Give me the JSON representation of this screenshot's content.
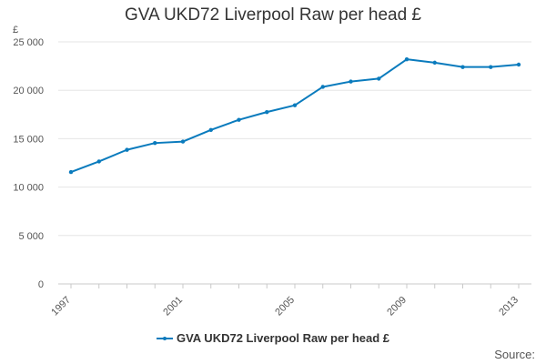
{
  "chart_data": {
    "type": "line",
    "title": "GVA UKD72 Liverpool Raw per head £",
    "ylabel": "£",
    "xlabel": "",
    "x": [
      1997,
      1998,
      1999,
      2000,
      2001,
      2002,
      2003,
      2004,
      2005,
      2006,
      2007,
      2008,
      2009,
      2010,
      2011,
      2012,
      2013
    ],
    "series": [
      {
        "name": "GVA UKD72 Liverpool Raw per head £",
        "color": "#0a7bbd",
        "values": [
          11550,
          12650,
          13850,
          14550,
          14700,
          15900,
          16950,
          17750,
          18450,
          20350,
          20900,
          21200,
          23200,
          22850,
          22400,
          22400,
          22650
        ]
      }
    ],
    "ylim": [
      0,
      25000
    ],
    "yticks": [
      0,
      5000,
      10000,
      15000,
      20000,
      25000
    ],
    "ytick_labels": [
      "0",
      "5 000",
      "10 000",
      "15 000",
      "20 000",
      "25 000"
    ],
    "xticks": [
      1997,
      2001,
      2005,
      2009,
      2013
    ],
    "xtick_labels": [
      "1997",
      "2001",
      "2005",
      "2009",
      "2013"
    ],
    "grid": true,
    "legend_position": "bottom"
  },
  "footer": {
    "source_label": "Source:"
  }
}
